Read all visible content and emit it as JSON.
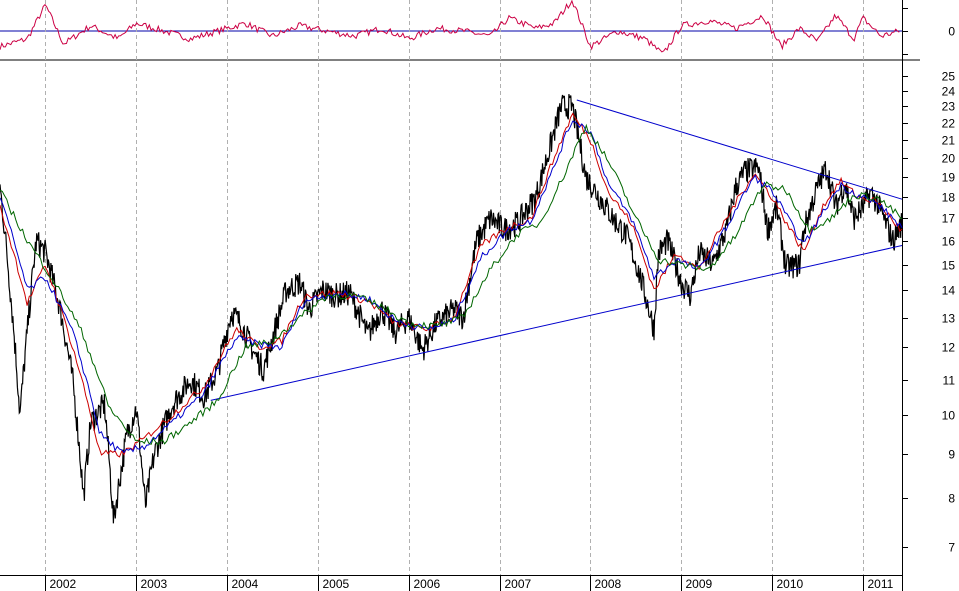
{
  "chart_data": [
    {
      "type": "line",
      "panel": "oscillator",
      "title": "",
      "xlabel": "",
      "ylabel": "",
      "y_tick_labels": [
        "0"
      ],
      "reference_line": 0,
      "series": [
        {
          "color": "#cc0044",
          "x": [
            2001.5,
            2001.8,
            2002.0,
            2002.2,
            2002.5,
            2002.8,
            2003.0,
            2003.3,
            2003.6,
            2003.9,
            2004.2,
            2004.5,
            2004.8,
            2005.1,
            2005.4,
            2005.7,
            2006.0,
            2006.3,
            2006.6,
            2006.9,
            2007.1,
            2007.4,
            2007.6,
            2007.8,
            2008.0,
            2008.3,
            2008.6,
            2008.8,
            2009.0,
            2009.3,
            2009.6,
            2009.9,
            2010.1,
            2010.3,
            2010.5,
            2010.7,
            2010.9,
            2011.0,
            2011.2,
            2011.4
          ],
          "values": [
            -0.6,
            -0.3,
            1.0,
            -0.5,
            0.2,
            -0.3,
            0.3,
            0.0,
            -0.3,
            0.0,
            0.3,
            -0.2,
            0.2,
            0.0,
            -0.2,
            0.1,
            -0.3,
            0.1,
            0.0,
            -0.2,
            0.5,
            0.1,
            0.3,
            1.2,
            -0.6,
            0.0,
            -0.3,
            -0.9,
            0.2,
            0.4,
            0.1,
            0.6,
            -0.6,
            0.1,
            -0.4,
            0.6,
            -0.3,
            0.5,
            -0.2,
            0.0
          ]
        }
      ]
    },
    {
      "type": "line",
      "panel": "price",
      "title": "",
      "xlabel": "",
      "ylabel": "",
      "scale": "log",
      "y_axis_side": "right",
      "ylim": [
        6.5,
        25.5
      ],
      "y_ticks": [
        7,
        8,
        9,
        10,
        11,
        12,
        13,
        14,
        15,
        16,
        17,
        18,
        19,
        20,
        21,
        22,
        23,
        24,
        25
      ],
      "x_tick_labels": [
        "2002",
        "2003",
        "2004",
        "2005",
        "2006",
        "2007",
        "2008",
        "2009",
        "2010",
        "2011"
      ],
      "xlim": [
        2001.5,
        2011.43
      ],
      "grid": "vertical dashed at year boundaries",
      "legend": "none",
      "series": [
        {
          "style": "price",
          "color": "#000000",
          "x": [
            2001.5,
            2001.6,
            2001.72,
            2001.8,
            2001.9,
            2002.0,
            2002.15,
            2002.3,
            2002.42,
            2002.5,
            2002.65,
            2002.75,
            2002.9,
            2003.0,
            2003.1,
            2003.2,
            2003.4,
            2003.6,
            2003.75,
            2003.9,
            2004.05,
            2004.15,
            2004.3,
            2004.4,
            2004.5,
            2004.65,
            2004.8,
            2004.9,
            2005.05,
            2005.2,
            2005.35,
            2005.55,
            2005.7,
            2005.85,
            2006.0,
            2006.15,
            2006.3,
            2006.5,
            2006.6,
            2006.75,
            2006.9,
            2007.05,
            2007.2,
            2007.4,
            2007.55,
            2007.68,
            2007.8,
            2007.95,
            2008.1,
            2008.25,
            2008.4,
            2008.55,
            2008.7,
            2008.75,
            2008.85,
            2009.0,
            2009.1,
            2009.2,
            2009.35,
            2009.5,
            2009.6,
            2009.7,
            2009.85,
            2009.95,
            2010.05,
            2010.15,
            2010.3,
            2010.35,
            2010.5,
            2010.6,
            2010.7,
            2010.8,
            2010.9,
            2011.0,
            2011.08,
            2011.15,
            2011.25,
            2011.33,
            2011.43
          ],
          "values": [
            18.5,
            14.5,
            10.0,
            12.5,
            16.0,
            15.5,
            13.5,
            11.0,
            8.0,
            9.8,
            10.3,
            7.5,
            9.5,
            10.2,
            7.8,
            9.0,
            10.3,
            11.0,
            10.5,
            11.3,
            13.2,
            12.8,
            11.8,
            11.3,
            12.3,
            14.0,
            14.3,
            13.3,
            14.0,
            13.8,
            13.9,
            12.4,
            13.3,
            12.5,
            13.0,
            11.9,
            12.8,
            13.3,
            13.0,
            16.0,
            17.0,
            16.5,
            16.8,
            18.0,
            20.5,
            23.0,
            23.0,
            19.0,
            18.0,
            17.0,
            16.2,
            14.5,
            12.6,
            15.5,
            16.0,
            14.3,
            13.8,
            15.5,
            15.0,
            16.5,
            18.5,
            19.3,
            19.5,
            16.5,
            17.5,
            14.9,
            15.0,
            16.5,
            18.5,
            19.5,
            17.5,
            18.7,
            17.0,
            17.5,
            18.2,
            17.8,
            16.8,
            16.0,
            16.8
          ]
        },
        {
          "style": "trendline",
          "color": "#0000cc",
          "x": [
            2003.82,
            2011.43
          ],
          "values": [
            10.4,
            15.8
          ]
        },
        {
          "style": "trendline",
          "color": "#0000cc",
          "x": [
            2007.85,
            2011.43
          ],
          "values": [
            23.4,
            17.9
          ]
        },
        {
          "style": "moving-average",
          "color": "#cc0000",
          "x": [
            2001.5,
            2001.8,
            2002.0,
            2002.3,
            2002.6,
            2002.85,
            2003.1,
            2003.4,
            2003.75,
            2004.1,
            2004.35,
            2004.6,
            2004.85,
            2005.2,
            2005.55,
            2005.85,
            2006.2,
            2006.5,
            2006.8,
            2007.1,
            2007.35,
            2007.6,
            2007.8,
            2008.0,
            2008.2,
            2008.45,
            2008.7,
            2008.95,
            2009.2,
            2009.5,
            2009.8,
            2010.0,
            2010.2,
            2010.35,
            2010.55,
            2010.75,
            2010.95,
            2011.15,
            2011.43
          ],
          "values": [
            17.5,
            13.5,
            15.0,
            12.0,
            9.0,
            9.0,
            9.4,
            10.0,
            10.8,
            12.6,
            12.0,
            12.2,
            13.8,
            13.9,
            13.6,
            12.8,
            12.6,
            13.0,
            15.8,
            16.6,
            17.0,
            20.0,
            22.5,
            21.0,
            18.2,
            16.8,
            14.0,
            15.5,
            14.8,
            17.0,
            19.2,
            18.0,
            16.5,
            15.5,
            17.5,
            18.8,
            18.0,
            17.8,
            16.4
          ]
        },
        {
          "style": "moving-average",
          "color": "#0000cc",
          "x": [
            2001.5,
            2001.8,
            2002.0,
            2002.3,
            2002.6,
            2002.85,
            2003.1,
            2003.4,
            2003.75,
            2004.1,
            2004.35,
            2004.6,
            2004.85,
            2005.2,
            2005.55,
            2005.85,
            2006.2,
            2006.5,
            2006.8,
            2007.1,
            2007.35,
            2007.6,
            2007.8,
            2008.0,
            2008.2,
            2008.45,
            2008.7,
            2008.95,
            2009.2,
            2009.5,
            2009.8,
            2010.0,
            2010.2,
            2010.35,
            2010.55,
            2010.75,
            2010.95,
            2011.15,
            2011.43
          ],
          "values": [
            18.0,
            14.0,
            14.5,
            12.5,
            9.5,
            9.0,
            9.2,
            9.8,
            10.6,
            12.3,
            12.1,
            12.0,
            13.6,
            13.9,
            13.7,
            12.9,
            12.6,
            12.9,
            15.3,
            16.5,
            16.9,
            19.5,
            22.2,
            21.5,
            18.6,
            17.0,
            14.5,
            15.2,
            14.8,
            16.6,
            19.0,
            18.3,
            16.8,
            15.8,
            17.2,
            18.6,
            18.1,
            17.7,
            16.6
          ]
        },
        {
          "style": "moving-average",
          "color": "#006600",
          "x": [
            2001.5,
            2001.8,
            2002.1,
            2002.4,
            2002.7,
            2003.0,
            2003.3,
            2003.6,
            2003.9,
            2004.2,
            2004.5,
            2004.8,
            2005.1,
            2005.4,
            2005.7,
            2006.0,
            2006.3,
            2006.6,
            2006.9,
            2007.2,
            2007.45,
            2007.7,
            2007.95,
            2008.2,
            2008.5,
            2008.75,
            2009.0,
            2009.3,
            2009.6,
            2009.9,
            2010.15,
            2010.4,
            2010.65,
            2010.9,
            2011.15,
            2011.43
          ],
          "values": [
            18.3,
            16.0,
            14.3,
            12.5,
            10.2,
            9.3,
            9.3,
            9.8,
            10.4,
            12.0,
            12.2,
            13.0,
            13.8,
            13.8,
            13.4,
            12.8,
            12.7,
            13.0,
            14.8,
            16.3,
            16.8,
            19.0,
            21.8,
            19.8,
            17.0,
            15.2,
            15.0,
            14.8,
            16.2,
            18.6,
            18.4,
            16.5,
            17.0,
            18.1,
            18.0,
            17.0
          ]
        }
      ]
    }
  ]
}
